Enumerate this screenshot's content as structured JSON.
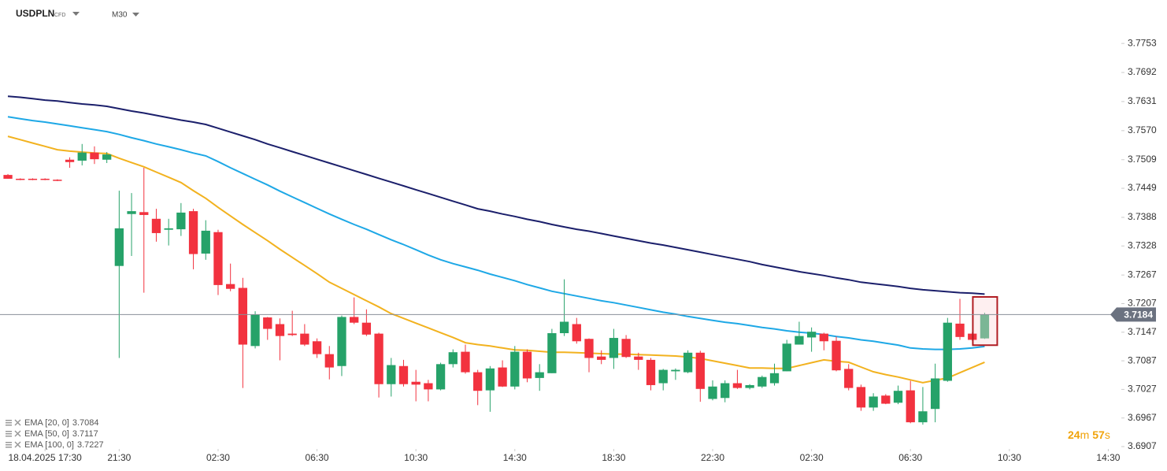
{
  "chart_data": {
    "type": "candlestick",
    "symbol": "USDPLN",
    "instrument_type": "CFD",
    "timeframe": "M30",
    "up_color": "#26a269",
    "down_color": "#f2323f",
    "current_price": 3.7184,
    "countdown": {
      "minutes": 24,
      "minutes_unit": "m",
      "seconds": 57,
      "seconds_unit": "s"
    },
    "xlim": [
      -0.64,
      89.8
    ],
    "xticks": [
      {
        "value": 3,
        "label": "18.04.2025 17:30"
      },
      {
        "value": 9,
        "label": "21:30"
      },
      {
        "value": 17,
        "label": "02:30"
      },
      {
        "value": 25,
        "label": "06:30"
      },
      {
        "value": 33,
        "label": "10:30"
      },
      {
        "value": 41,
        "label": "14:30"
      },
      {
        "value": 49,
        "label": "18:30"
      },
      {
        "value": 57,
        "label": "22:30"
      },
      {
        "value": 65,
        "label": "02:30"
      },
      {
        "value": 73,
        "label": "06:30"
      },
      {
        "value": 81,
        "label": "10:30"
      },
      {
        "value": 89,
        "label": "14:30"
      }
    ],
    "ylim": [
      3.6907,
      3.7778
    ],
    "yticks": [
      3.7753,
      3.7692,
      3.7631,
      {
        "value": 3.757,
        "label": "3.7570"
      },
      3.7509,
      3.7449,
      3.7388,
      3.7328,
      3.7267,
      3.7207,
      3.7147,
      3.7087,
      3.7027,
      3.6967,
      3.6907
    ],
    "open": [
      3.7477,
      3.7469,
      3.7469,
      3.7469,
      3.7467,
      3.7509,
      3.7507,
      3.7524,
      3.7509,
      3.7286,
      3.7395,
      3.7399,
      3.7385,
      3.7362,
      3.7363,
      3.7401,
      3.7312,
      3.7357,
      3.7248,
      3.724,
      3.7118,
      3.7178,
      3.7164,
      3.7144,
      3.7144,
      3.7128,
      3.7101,
      3.7076,
      3.7179,
      3.7167,
      3.7144,
      3.7038,
      3.7076,
      3.7043,
      3.704,
      3.7027,
      3.708,
      3.7106,
      3.7063,
      3.7025,
      3.7073,
      3.7033,
      3.7106,
      3.7051,
      3.7061,
      3.7145,
      3.7164,
      3.7133,
      3.7096,
      3.7093,
      3.7133,
      3.7096,
      3.7089,
      3.704,
      3.7065,
      3.7063,
      3.7104,
      3.7007,
      3.7009,
      3.704,
      3.703,
      3.7033,
      3.704,
      3.7065,
      3.7121,
      3.7136,
      3.7144,
      3.7129,
      3.707,
      3.7032,
      3.6989,
      3.7014,
      3.6999,
      3.7025,
      3.6958,
      3.6986,
      3.7045,
      3.7165,
      3.7144,
      3.7134
    ],
    "high": [
      3.7479,
      3.747,
      3.747,
      3.747,
      3.7468,
      3.7514,
      3.7542,
      3.7537,
      3.7525,
      3.7444,
      3.7439,
      3.7492,
      3.7406,
      3.7385,
      3.7418,
      3.7406,
      3.7382,
      3.7362,
      3.7291,
      3.7261,
      3.7191,
      3.7179,
      3.7176,
      3.7192,
      3.7164,
      3.7134,
      3.7118,
      3.7182,
      3.722,
      3.7195,
      3.7146,
      3.7093,
      3.7089,
      3.7068,
      3.7047,
      3.7083,
      3.7111,
      3.7121,
      3.7068,
      3.7076,
      3.7088,
      3.7118,
      3.7111,
      3.708,
      3.7154,
      3.7258,
      3.7177,
      3.7134,
      3.7109,
      3.7154,
      3.7141,
      3.7104,
      3.7093,
      3.707,
      3.7071,
      3.7109,
      3.7108,
      3.7046,
      3.7046,
      3.7068,
      3.7038,
      3.7056,
      3.7081,
      3.7131,
      3.7169,
      3.7157,
      3.7146,
      3.7138,
      3.708,
      3.7037,
      3.7019,
      3.7017,
      3.7035,
      3.7045,
      3.7032,
      3.7081,
      3.7177,
      3.7217,
      3.7147,
      3.7188
    ],
    "low": [
      3.7469,
      3.7466,
      3.7466,
      3.7466,
      3.7464,
      3.7492,
      3.7497,
      3.75,
      3.7502,
      3.7093,
      3.7307,
      3.723,
      3.7337,
      3.7329,
      3.7349,
      3.7279,
      3.7299,
      3.7225,
      3.7233,
      3.703,
      3.7113,
      3.7131,
      3.7088,
      3.7139,
      3.7118,
      3.7093,
      3.7048,
      3.7055,
      3.7164,
      3.7139,
      3.701,
      3.7012,
      3.7033,
      3.7002,
      3.7002,
      3.7025,
      3.7073,
      3.706,
      3.6994,
      3.698,
      3.7032,
      3.7027,
      3.7042,
      3.7024,
      3.7061,
      3.7139,
      3.7123,
      3.7063,
      3.708,
      3.707,
      3.7093,
      3.7068,
      3.7025,
      3.7025,
      3.7047,
      3.7061,
      3.7001,
      3.7004,
      3.7,
      3.7028,
      3.7027,
      3.703,
      3.7035,
      3.7065,
      3.7121,
      3.7106,
      3.7109,
      3.7065,
      3.7025,
      3.6982,
      3.6982,
      3.6996,
      3.6996,
      3.6956,
      3.6953,
      3.6958,
      3.7043,
      3.7131,
      3.7129,
      3.7133
    ],
    "close": [
      3.7469,
      3.7467,
      3.7467,
      3.7467,
      3.7465,
      3.7504,
      3.7524,
      3.751,
      3.752,
      3.7365,
      3.7401,
      3.7393,
      3.7355,
      3.7365,
      3.7398,
      3.7311,
      3.736,
      3.7246,
      3.7238,
      3.7121,
      3.7184,
      3.7154,
      3.7139,
      3.7141,
      3.7121,
      3.7101,
      3.7073,
      3.7179,
      3.7167,
      3.7142,
      3.7038,
      3.7078,
      3.7038,
      3.7037,
      3.7027,
      3.708,
      3.7105,
      3.7063,
      3.7024,
      3.7071,
      3.7033,
      3.7106,
      3.705,
      3.7063,
      3.7145,
      3.7169,
      3.7128,
      3.7093,
      3.7089,
      3.7135,
      3.7095,
      3.7089,
      3.7036,
      3.7068,
      3.7068,
      3.7104,
      3.7028,
      3.7033,
      3.704,
      3.703,
      3.7036,
      3.7053,
      3.7061,
      3.7123,
      3.7139,
      3.7148,
      3.7128,
      3.7067,
      3.703,
      3.6989,
      3.7012,
      3.6997,
      3.7024,
      3.6958,
      3.6981,
      3.705,
      3.7167,
      3.7137,
      3.7131,
      3.7184
    ],
    "series": [
      {
        "name": "EMA [20, 0]",
        "color": "#f2b21f",
        "legend_value": 3.7084,
        "values": [
          3.7558,
          3.7551,
          3.7544,
          3.7537,
          3.753,
          3.7527,
          3.7525,
          3.7523,
          3.7522,
          3.7512,
          3.7503,
          3.7494,
          3.7483,
          3.7472,
          3.7461,
          3.7444,
          3.7428,
          3.7409,
          3.7391,
          3.7373,
          3.7356,
          3.7339,
          3.7321,
          3.7304,
          3.7287,
          3.727,
          3.7252,
          3.7239,
          3.7226,
          3.7213,
          3.72,
          3.7186,
          3.7176,
          3.7166,
          3.7156,
          3.7146,
          3.7136,
          3.7125,
          3.7121,
          3.7118,
          3.7114,
          3.711,
          3.7109,
          3.7107,
          3.7105,
          3.7105,
          3.7104,
          3.7103,
          3.7102,
          3.7101,
          3.7101,
          3.71,
          3.7099,
          3.7098,
          3.7097,
          3.7095,
          3.7092,
          3.7087,
          3.7082,
          3.7077,
          3.7072,
          3.7072,
          3.7071,
          3.7071,
          3.7077,
          3.7083,
          3.7089,
          3.7086,
          3.7084,
          3.7074,
          3.7064,
          3.7058,
          3.7053,
          3.7047,
          3.7041,
          3.7046,
          3.7051,
          3.7062,
          3.7073,
          3.7084
        ]
      },
      {
        "name": "EMA [50, 0]",
        "color": "#1ea8e6",
        "legend_value": 3.7117,
        "values": [
          3.7599,
          3.7595,
          3.7591,
          3.7588,
          3.7584,
          3.758,
          3.7576,
          3.7572,
          3.7568,
          3.7562,
          3.7555,
          3.7549,
          3.7542,
          3.7536,
          3.753,
          3.7523,
          3.7517,
          3.7505,
          3.7492,
          3.748,
          3.7468,
          3.7456,
          3.7443,
          3.7431,
          3.7419,
          3.7407,
          3.7395,
          3.7384,
          3.7373,
          3.7363,
          3.7352,
          3.7341,
          3.7331,
          3.732,
          3.7309,
          3.7299,
          3.7291,
          3.7284,
          3.7277,
          3.7269,
          3.7262,
          3.7255,
          3.7247,
          3.724,
          3.7233,
          3.7228,
          3.7223,
          3.7218,
          3.7213,
          3.7209,
          3.7204,
          3.7199,
          3.7194,
          3.7189,
          3.7185,
          3.718,
          3.7176,
          3.7172,
          3.7168,
          3.7165,
          3.7161,
          3.7157,
          3.7154,
          3.715,
          3.7147,
          3.7145,
          3.7142,
          3.7138,
          3.7135,
          3.7131,
          3.7128,
          3.7124,
          3.712,
          3.7114,
          3.7112,
          3.7111,
          3.7111,
          3.7112,
          3.7114,
          3.7117
        ]
      },
      {
        "name": "EMA [100, 0]",
        "color": "#1b1f6b",
        "legend_value": 3.7227,
        "values": [
          3.7642,
          3.764,
          3.7637,
          3.7634,
          3.7632,
          3.7629,
          3.7626,
          3.7624,
          3.7621,
          3.7616,
          3.7611,
          3.7607,
          3.7602,
          3.7597,
          3.7592,
          3.7588,
          3.7583,
          3.7575,
          3.7567,
          3.7559,
          3.7551,
          3.7542,
          3.7534,
          3.7526,
          3.7518,
          3.751,
          3.7502,
          3.7494,
          3.7486,
          3.7478,
          3.747,
          3.7462,
          3.7454,
          3.7446,
          3.7438,
          3.743,
          3.7422,
          3.7414,
          3.7406,
          3.7401,
          3.7395,
          3.739,
          3.7384,
          3.7379,
          3.7373,
          3.7368,
          3.7363,
          3.7359,
          3.7354,
          3.7349,
          3.7344,
          3.7339,
          3.7334,
          3.733,
          3.7325,
          3.732,
          3.7315,
          3.731,
          3.7305,
          3.73,
          3.7295,
          3.7289,
          3.7284,
          3.7279,
          3.7274,
          3.727,
          3.7266,
          3.7261,
          3.7257,
          3.7252,
          3.7249,
          3.7246,
          3.7243,
          3.7239,
          3.7236,
          3.7234,
          3.7232,
          3.723,
          3.7229,
          3.7227
        ]
      }
    ]
  }
}
